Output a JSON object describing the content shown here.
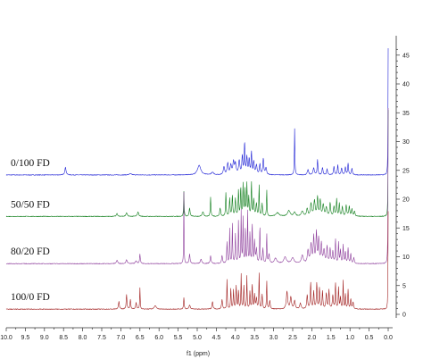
{
  "chart_data": {
    "type": "line",
    "title": "",
    "xlabel": "f1 (ppm)",
    "ylabel": "",
    "xlim": [
      10.0,
      0.0
    ],
    "x_reversed": true,
    "ylim": [
      -2,
      47
    ],
    "x_ticks": [
      "10.0",
      "9.5",
      "9.0",
      "8.5",
      "8.0",
      "7.5",
      "7.0",
      "6.5",
      "6.0",
      "5.5",
      "5.0",
      "4.5",
      "4.0",
      "3.5",
      "3.0",
      "2.5",
      "2.0",
      "1.5",
      "1.0",
      "0.5",
      "0.0"
    ],
    "y_ticks": [
      "0",
      "5",
      "10",
      "15",
      "20",
      "25",
      "30",
      "35",
      "40",
      "45"
    ],
    "y_axis_side": "right",
    "grid": false,
    "legend": "none",
    "series": [
      {
        "name": "0/100 FD",
        "color": "#1f22d6",
        "baseline": 24.2,
        "peaks": [
          [
            8.45,
            1.3,
            0.02
          ],
          [
            6.75,
            0.2,
            0.04
          ],
          [
            4.95,
            1.7,
            0.05
          ],
          [
            4.6,
            0.4,
            0.04
          ],
          [
            4.3,
            1.4,
            0.02
          ],
          [
            4.2,
            2.0,
            0.02
          ],
          [
            4.12,
            1.6,
            0.02
          ],
          [
            4.05,
            2.2,
            0.02
          ],
          [
            4.0,
            1.8,
            0.02
          ],
          [
            3.9,
            2.4,
            0.02
          ],
          [
            3.82,
            3.1,
            0.015
          ],
          [
            3.76,
            5.4,
            0.012
          ],
          [
            3.7,
            3.0,
            0.015
          ],
          [
            3.64,
            2.6,
            0.015
          ],
          [
            3.58,
            3.8,
            0.012
          ],
          [
            3.52,
            2.2,
            0.015
          ],
          [
            3.45,
            1.6,
            0.02
          ],
          [
            3.36,
            1.8,
            0.015
          ],
          [
            3.27,
            2.7,
            0.015
          ],
          [
            3.2,
            1.2,
            0.02
          ],
          [
            2.45,
            8.0,
            0.008
          ],
          [
            2.1,
            0.9,
            0.02
          ],
          [
            1.95,
            1.2,
            0.02
          ],
          [
            1.85,
            2.6,
            0.012
          ],
          [
            1.72,
            1.3,
            0.015
          ],
          [
            1.6,
            1.0,
            0.015
          ],
          [
            1.42,
            1.4,
            0.015
          ],
          [
            1.32,
            1.7,
            0.012
          ],
          [
            1.22,
            1.2,
            0.015
          ],
          [
            1.12,
            1.3,
            0.015
          ],
          [
            1.05,
            2.0,
            0.012
          ],
          [
            0.95,
            1.1,
            0.015
          ],
          [
            0.0,
            22.0,
            0.006
          ]
        ]
      },
      {
        "name": "50/50 FD",
        "color": "#0d7d19",
        "baseline": 17.0,
        "peaks": [
          [
            7.1,
            0.5,
            0.02
          ],
          [
            6.85,
            0.6,
            0.02
          ],
          [
            6.55,
            0.8,
            0.02
          ],
          [
            5.35,
            4.3,
            0.008
          ],
          [
            5.2,
            1.4,
            0.015
          ],
          [
            4.85,
            0.8,
            0.02
          ],
          [
            4.65,
            3.3,
            0.01
          ],
          [
            4.4,
            1.4,
            0.015
          ],
          [
            4.25,
            4.1,
            0.01
          ],
          [
            4.15,
            3.0,
            0.012
          ],
          [
            4.08,
            3.5,
            0.012
          ],
          [
            4.0,
            3.0,
            0.012
          ],
          [
            3.92,
            4.5,
            0.01
          ],
          [
            3.86,
            5.0,
            0.01
          ],
          [
            3.8,
            5.5,
            0.01
          ],
          [
            3.75,
            4.5,
            0.01
          ],
          [
            3.7,
            5.5,
            0.01
          ],
          [
            3.65,
            3.2,
            0.012
          ],
          [
            3.58,
            5.8,
            0.01
          ],
          [
            3.52,
            2.8,
            0.012
          ],
          [
            3.45,
            2.2,
            0.015
          ],
          [
            3.38,
            5.5,
            0.008
          ],
          [
            3.3,
            2.2,
            0.012
          ],
          [
            3.18,
            4.6,
            0.008
          ],
          [
            2.9,
            0.6,
            0.05
          ],
          [
            2.6,
            1.0,
            0.04
          ],
          [
            2.45,
            0.7,
            0.03
          ],
          [
            2.25,
            0.9,
            0.03
          ],
          [
            2.12,
            1.3,
            0.02
          ],
          [
            2.02,
            2.2,
            0.02
          ],
          [
            1.93,
            2.7,
            0.02
          ],
          [
            1.85,
            3.3,
            0.015
          ],
          [
            1.78,
            2.8,
            0.015
          ],
          [
            1.7,
            2.0,
            0.02
          ],
          [
            1.62,
            1.5,
            0.02
          ],
          [
            1.52,
            2.3,
            0.015
          ],
          [
            1.42,
            1.7,
            0.015
          ],
          [
            1.35,
            2.9,
            0.012
          ],
          [
            1.28,
            2.2,
            0.012
          ],
          [
            1.2,
            1.6,
            0.015
          ],
          [
            1.1,
            1.9,
            0.015
          ],
          [
            1.02,
            1.7,
            0.015
          ],
          [
            0.95,
            1.2,
            0.015
          ],
          [
            0.88,
            0.9,
            0.015
          ],
          [
            0.0,
            18.5,
            0.006
          ]
        ]
      },
      {
        "name": "80/20 FD",
        "color": "#8e3f9c",
        "baseline": 8.8,
        "peaks": [
          [
            7.1,
            0.6,
            0.02
          ],
          [
            6.85,
            0.7,
            0.02
          ],
          [
            6.6,
            0.5,
            0.02
          ],
          [
            6.5,
            1.6,
            0.012
          ],
          [
            5.35,
            12.4,
            0.006
          ],
          [
            5.2,
            1.6,
            0.015
          ],
          [
            4.9,
            0.8,
            0.02
          ],
          [
            4.65,
            1.3,
            0.015
          ],
          [
            4.35,
            1.4,
            0.015
          ],
          [
            4.22,
            3.7,
            0.01
          ],
          [
            4.15,
            6.0,
            0.008
          ],
          [
            4.08,
            7.0,
            0.008
          ],
          [
            4.0,
            5.0,
            0.01
          ],
          [
            3.92,
            7.5,
            0.008
          ],
          [
            3.85,
            9.0,
            0.008
          ],
          [
            3.8,
            7.8,
            0.008
          ],
          [
            3.74,
            6.4,
            0.008
          ],
          [
            3.68,
            9.2,
            0.008
          ],
          [
            3.62,
            5.2,
            0.01
          ],
          [
            3.56,
            7.3,
            0.008
          ],
          [
            3.5,
            3.8,
            0.012
          ],
          [
            3.45,
            2.5,
            0.015
          ],
          [
            3.36,
            6.8,
            0.008
          ],
          [
            3.28,
            2.6,
            0.012
          ],
          [
            3.18,
            5.2,
            0.008
          ],
          [
            3.12,
            1.6,
            0.015
          ],
          [
            2.95,
            0.9,
            0.04
          ],
          [
            2.7,
            1.1,
            0.04
          ],
          [
            2.5,
            1.0,
            0.04
          ],
          [
            2.25,
            1.4,
            0.03
          ],
          [
            2.1,
            2.2,
            0.02
          ],
          [
            2.02,
            3.2,
            0.02
          ],
          [
            1.95,
            4.5,
            0.015
          ],
          [
            1.88,
            5.3,
            0.015
          ],
          [
            1.82,
            4.2,
            0.015
          ],
          [
            1.75,
            3.4,
            0.015
          ],
          [
            1.68,
            2.3,
            0.02
          ],
          [
            1.6,
            2.9,
            0.015
          ],
          [
            1.52,
            2.5,
            0.015
          ],
          [
            1.45,
            2.0,
            0.015
          ],
          [
            1.38,
            4.2,
            0.01
          ],
          [
            1.3,
            3.6,
            0.01
          ],
          [
            1.25,
            2.3,
            0.012
          ],
          [
            1.18,
            3.2,
            0.01
          ],
          [
            1.12,
            2.0,
            0.012
          ],
          [
            1.05,
            2.6,
            0.012
          ],
          [
            0.98,
            1.7,
            0.012
          ],
          [
            0.9,
            1.0,
            0.015
          ],
          [
            0.0,
            27.0,
            0.006
          ]
        ]
      },
      {
        "name": "100/0 FD",
        "color": "#a11f1f",
        "baseline": 0.9,
        "peaks": [
          [
            7.05,
            1.3,
            0.015
          ],
          [
            6.85,
            2.5,
            0.012
          ],
          [
            6.75,
            1.6,
            0.012
          ],
          [
            6.6,
            1.1,
            0.015
          ],
          [
            6.5,
            3.7,
            0.008
          ],
          [
            6.1,
            0.6,
            0.03
          ],
          [
            5.35,
            2.0,
            0.01
          ],
          [
            5.2,
            0.7,
            0.02
          ],
          [
            4.6,
            1.3,
            0.015
          ],
          [
            4.35,
            1.6,
            0.015
          ],
          [
            4.22,
            5.2,
            0.008
          ],
          [
            4.12,
            3.5,
            0.01
          ],
          [
            4.05,
            3.2,
            0.01
          ],
          [
            3.98,
            4.0,
            0.01
          ],
          [
            3.92,
            3.1,
            0.01
          ],
          [
            3.85,
            6.0,
            0.008
          ],
          [
            3.78,
            4.0,
            0.01
          ],
          [
            3.7,
            5.7,
            0.008
          ],
          [
            3.62,
            3.0,
            0.01
          ],
          [
            3.56,
            4.6,
            0.008
          ],
          [
            3.5,
            2.4,
            0.012
          ],
          [
            3.45,
            1.8,
            0.015
          ],
          [
            3.38,
            6.3,
            0.008
          ],
          [
            3.3,
            2.5,
            0.012
          ],
          [
            3.18,
            4.9,
            0.008
          ],
          [
            3.1,
            1.4,
            0.015
          ],
          [
            2.65,
            3.0,
            0.02
          ],
          [
            2.55,
            2.0,
            0.02
          ],
          [
            2.45,
            1.4,
            0.02
          ],
          [
            2.3,
            1.0,
            0.02
          ],
          [
            2.12,
            2.4,
            0.015
          ],
          [
            2.03,
            4.5,
            0.012
          ],
          [
            1.95,
            3.0,
            0.012
          ],
          [
            1.87,
            4.4,
            0.012
          ],
          [
            1.8,
            3.6,
            0.012
          ],
          [
            1.72,
            3.0,
            0.012
          ],
          [
            1.62,
            2.7,
            0.015
          ],
          [
            1.55,
            3.2,
            0.012
          ],
          [
            1.45,
            2.3,
            0.015
          ],
          [
            1.38,
            4.5,
            0.01
          ],
          [
            1.3,
            3.7,
            0.01
          ],
          [
            1.25,
            2.0,
            0.012
          ],
          [
            1.18,
            5.0,
            0.008
          ],
          [
            1.12,
            2.6,
            0.01
          ],
          [
            1.05,
            3.3,
            0.01
          ],
          [
            0.98,
            1.7,
            0.012
          ],
          [
            0.92,
            1.2,
            0.015
          ],
          [
            0.0,
            17.0,
            0.006
          ]
        ]
      }
    ],
    "annotations": [
      {
        "text": "0/100 FD",
        "series": "0/100 FD"
      },
      {
        "text": "50/50 FD",
        "series": "50/50 FD"
      },
      {
        "text": "80/20 FD",
        "series": "80/20 FD"
      },
      {
        "text": "100/0 FD",
        "series": "100/0 FD"
      }
    ]
  }
}
